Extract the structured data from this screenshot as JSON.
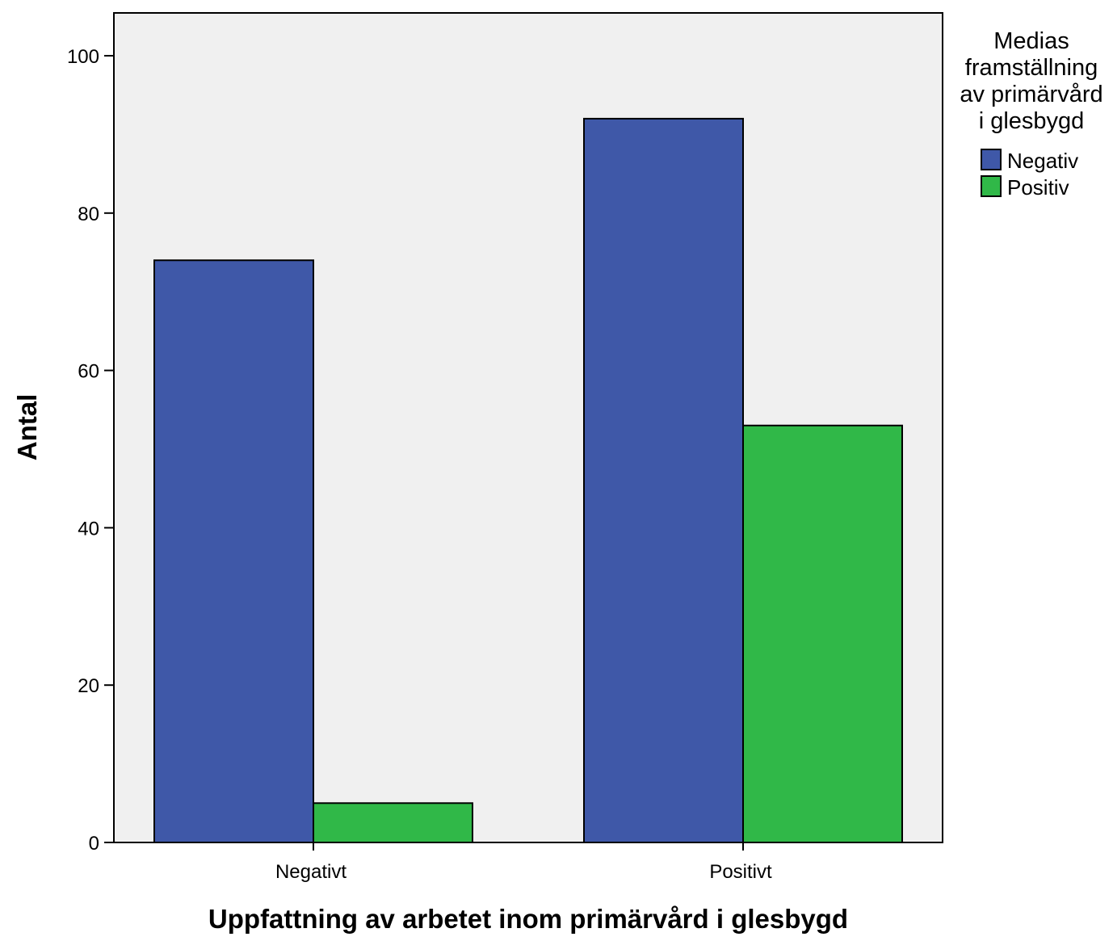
{
  "chart_data": {
    "type": "bar",
    "categories": [
      "Negativt",
      "Positivt"
    ],
    "series": [
      {
        "name": "Negativ",
        "values": [
          74,
          92
        ],
        "color": "#3f58a8"
      },
      {
        "name": "Positiv",
        "values": [
          5,
          53
        ],
        "color": "#30b848"
      }
    ],
    "xlabel": "Uppfattning av arbetet inom primärvård i glesbygd",
    "ylabel": "Antal",
    "ylim": [
      0,
      105
    ],
    "yticks": [
      0,
      20,
      40,
      60,
      80,
      100
    ],
    "grid": false,
    "legend": {
      "title_lines": [
        "Medias",
        "framställning",
        "av primärvård",
        "i glesbygd"
      ],
      "placement": "top-right"
    },
    "plot_background": "#f0f0f0"
  }
}
